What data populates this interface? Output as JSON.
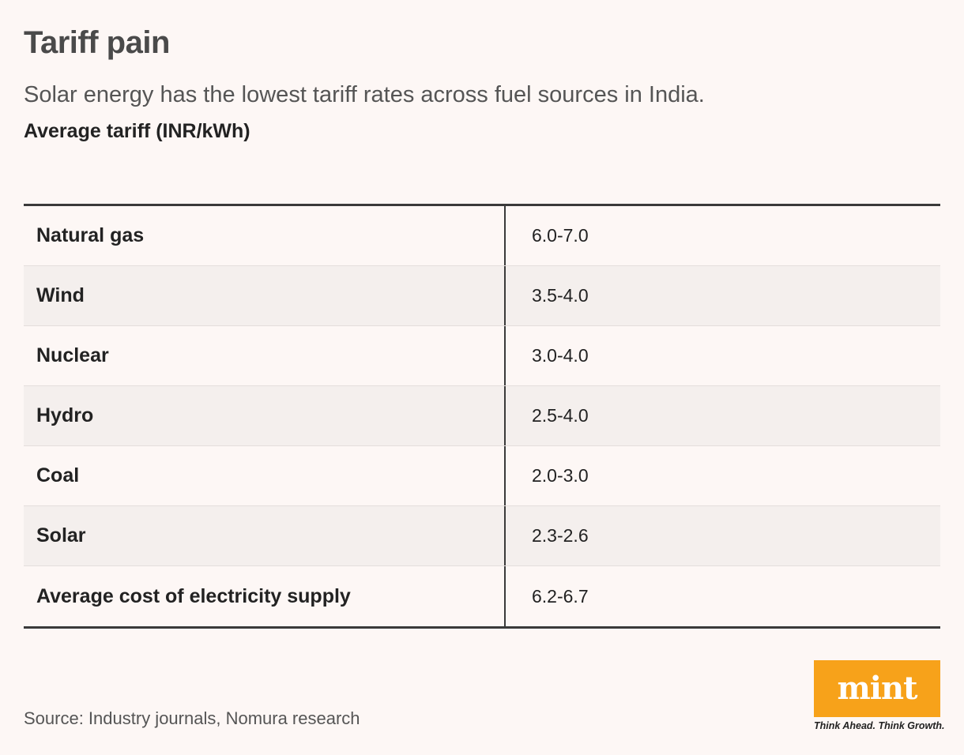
{
  "header": {
    "title": "Tariff pain",
    "subtitle": "Solar energy has the lowest tariff rates across fuel sources in India.",
    "unit_label": "Average tariff (INR/kWh)"
  },
  "chart_data": {
    "type": "table",
    "title": "Tariff pain",
    "subtitle": "Solar energy has the lowest tariff rates across fuel sources in India.",
    "ylabel": "Average tariff (INR/kWh)",
    "rows": [
      {
        "source": "Natural gas",
        "tariff": "6.0-7.0"
      },
      {
        "source": "Wind",
        "tariff": "3.5-4.0"
      },
      {
        "source": "Nuclear",
        "tariff": "3.0-4.0"
      },
      {
        "source": "Hydro",
        "tariff": "2.5-4.0"
      },
      {
        "source": "Coal",
        "tariff": "2.0-3.0"
      },
      {
        "source": "Solar",
        "tariff": "2.3-2.6"
      },
      {
        "source": "Average cost of electricity supply",
        "tariff": "6.2-6.7"
      }
    ]
  },
  "footer": {
    "source": "Source: Industry journals, Nomura research",
    "logo_text": "mint",
    "tagline": "Think Ahead. Think Growth."
  },
  "colors": {
    "background": "#fdf7f5",
    "alt_row": "#f4efed",
    "rule": "#3a3a3a",
    "brand_orange": "#f7a21a"
  }
}
